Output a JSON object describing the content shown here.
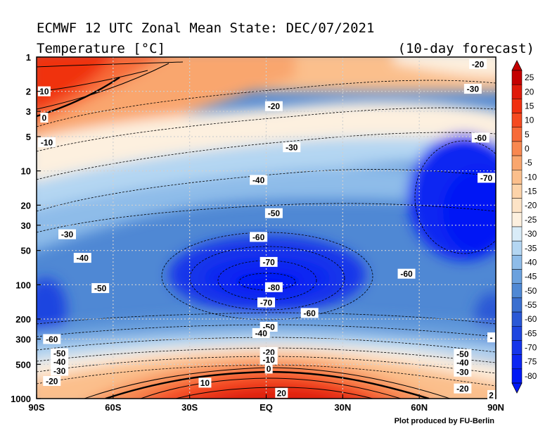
{
  "chart_data": {
    "type": "heatmap",
    "title": "ECMWF 12 UTC Zonal Mean State: DEC/07/2021",
    "subtitle": "Temperature [°C]",
    "forecast_label": "(10-day forecast)",
    "credit": "Plot produced by FU-Berlin",
    "x_ticks": [
      "90S",
      "60S",
      "30S",
      "EQ",
      "30N",
      "60N",
      "90N"
    ],
    "x_values": [
      -90,
      -60,
      -30,
      0,
      30,
      60,
      90
    ],
    "y_ticks": [
      "1",
      "2",
      "3",
      "5",
      "10",
      "20",
      "30",
      "50",
      "100",
      "200",
      "300",
      "500",
      "1000"
    ],
    "y_values": [
      1,
      2,
      3,
      5,
      10,
      20,
      30,
      50,
      100,
      200,
      300,
      500,
      1000
    ],
    "y_scale": "log",
    "y_inverted": true,
    "xlim": [
      -90,
      90
    ],
    "ylim": [
      1000,
      1
    ],
    "grid": true,
    "colorbar_levels": [
      "25",
      "20",
      "15",
      "10",
      "5",
      "0",
      "-5",
      "-10",
      "-15",
      "-20",
      "-25",
      "-30",
      "-35",
      "-40",
      "-45",
      "-50",
      "-55",
      "-60",
      "-65",
      "-70",
      "-75",
      "-80"
    ],
    "colorbar_colors": [
      "#c40000",
      "#e01a0a",
      "#f03010",
      "#f54a20",
      "#f76a38",
      "#f88850",
      "#f9a66e",
      "#fbbf8c",
      "#fcd3a9",
      "#fde3c6",
      "#fdf0df",
      "#d9ecf8",
      "#b4d6f2",
      "#8ebce9",
      "#6ba1de",
      "#4f88d4",
      "#3a6fd0",
      "#2a58d6",
      "#1e45e0",
      "#1535ea",
      "#0c26f2",
      "#0018f5"
    ],
    "contour_labels": [
      {
        "lat": -87,
        "p": 2,
        "text": "10"
      },
      {
        "lat": -87,
        "p": 3.4,
        "text": "0"
      },
      {
        "lat": -86,
        "p": 5.6,
        "text": "-10"
      },
      {
        "lat": 3,
        "p": 2.7,
        "text": "-20"
      },
      {
        "lat": 10,
        "p": 6.2,
        "text": "-30"
      },
      {
        "lat": -3,
        "p": 12,
        "text": "-40"
      },
      {
        "lat": 83,
        "p": 1.15,
        "text": "-20"
      },
      {
        "lat": 81,
        "p": 1.9,
        "text": "-30"
      },
      {
        "lat": 84,
        "p": 5.1,
        "text": "-60"
      },
      {
        "lat": 88,
        "p": 11.5,
        "text": "-70"
      },
      {
        "lat": 3,
        "p": 23.5,
        "text": "-50"
      },
      {
        "lat": -3,
        "p": 38,
        "text": "-60"
      },
      {
        "lat": -78,
        "p": 36,
        "text": "-30"
      },
      {
        "lat": -72,
        "p": 58,
        "text": "-40"
      },
      {
        "lat": 1,
        "p": 63,
        "text": "-70"
      },
      {
        "lat": 55,
        "p": 80,
        "text": "-60"
      },
      {
        "lat": -65,
        "p": 107,
        "text": "-50"
      },
      {
        "lat": 3,
        "p": 105,
        "text": "-80"
      },
      {
        "lat": 0,
        "p": 143,
        "text": "-70"
      },
      {
        "lat": 17,
        "p": 177,
        "text": "-60"
      },
      {
        "lat": 1,
        "p": 234,
        "text": "-50"
      },
      {
        "lat": -2,
        "p": 266,
        "text": "-40"
      },
      {
        "lat": -84,
        "p": 300,
        "text": "-60"
      },
      {
        "lat": -81,
        "p": 400,
        "text": "-50"
      },
      {
        "lat": -81,
        "p": 475,
        "text": "-40"
      },
      {
        "lat": -81,
        "p": 570,
        "text": "-30"
      },
      {
        "lat": -84,
        "p": 700,
        "text": "-20"
      },
      {
        "lat": 1,
        "p": 390,
        "text": "-20"
      },
      {
        "lat": 1,
        "p": 455,
        "text": "-10"
      },
      {
        "lat": 1,
        "p": 545,
        "text": "0"
      },
      {
        "lat": -24,
        "p": 725,
        "text": "10"
      },
      {
        "lat": 6,
        "p": 890,
        "text": "20"
      },
      {
        "lat": 77,
        "p": 405,
        "text": "-50"
      },
      {
        "lat": 77,
        "p": 480,
        "text": "-40"
      },
      {
        "lat": 77,
        "p": 580,
        "text": "-30"
      },
      {
        "lat": 77,
        "p": 815,
        "text": "-20"
      },
      {
        "lat": 89,
        "p": 290,
        "text": "-"
      },
      {
        "lat": 89,
        "p": 930,
        "text": "2"
      }
    ]
  }
}
